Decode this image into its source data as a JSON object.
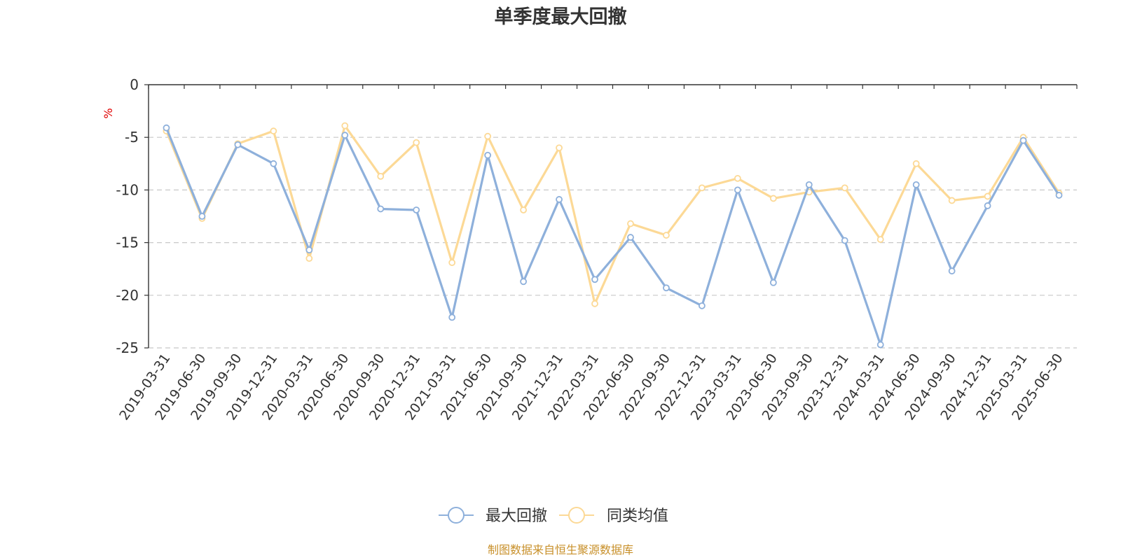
{
  "chart_data": {
    "type": "line",
    "title": "单季度最大回撤",
    "ylabel": "%",
    "ylim": [
      -25,
      0
    ],
    "yticks": [
      0,
      -5,
      -10,
      -15,
      -20,
      -25
    ],
    "grid": true,
    "legend_position": "bottom-center",
    "categories": [
      "2019-03-31",
      "2019-06-30",
      "2019-09-30",
      "2019-12-31",
      "2020-03-31",
      "2020-06-30",
      "2020-09-30",
      "2020-12-31",
      "2021-03-31",
      "2021-06-30",
      "2021-09-30",
      "2021-12-31",
      "2022-03-31",
      "2022-06-30",
      "2022-09-30",
      "2022-12-31",
      "2023-03-31",
      "2023-06-30",
      "2023-09-30",
      "2023-12-31",
      "2024-03-31",
      "2024-06-30",
      "2024-09-30",
      "2024-12-31",
      "2025-03-31",
      "2025-06-30"
    ],
    "series": [
      {
        "name": "最大回撤",
        "color": "#8eb0db",
        "values": [
          -4.1,
          -12.5,
          -5.7,
          -7.5,
          -15.7,
          -4.8,
          -11.8,
          -11.9,
          -22.1,
          -6.7,
          -18.7,
          -10.9,
          -18.5,
          -14.5,
          -19.3,
          -21.0,
          -10.0,
          -18.8,
          -9.5,
          -14.8,
          -24.7,
          -9.5,
          -17.7,
          -11.5,
          -5.3,
          -10.5
        ]
      },
      {
        "name": "同类均值",
        "color": "#fcd996",
        "values": [
          -4.4,
          -12.7,
          -5.6,
          -4.4,
          -16.5,
          -3.9,
          -8.7,
          -5.5,
          -16.9,
          -4.9,
          -11.9,
          -6.0,
          -20.8,
          -13.2,
          -14.3,
          -9.8,
          -8.9,
          -10.8,
          -10.2,
          -9.8,
          -14.7,
          -7.5,
          -11.0,
          -10.6,
          -5.0,
          -10.3
        ]
      }
    ]
  },
  "source_text": "制图数据来自恒生聚源数据库"
}
